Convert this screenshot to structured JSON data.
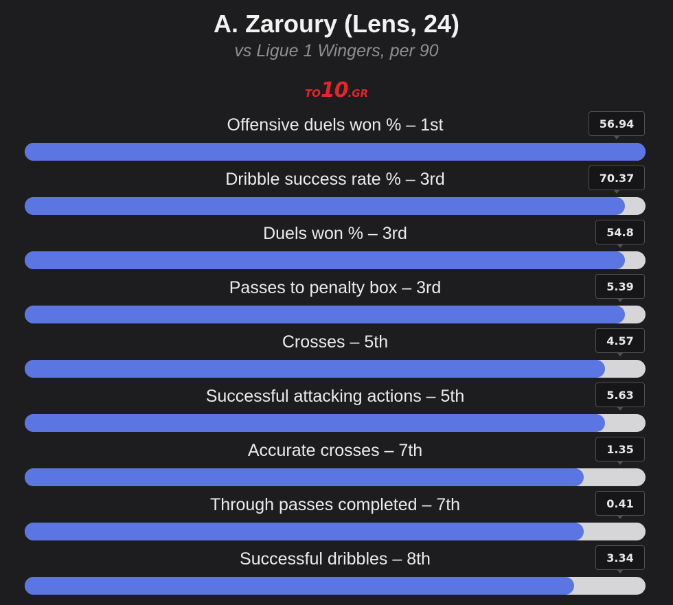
{
  "header": {
    "title": "A. Zaroury (Lens, 24)",
    "subtitle": "vs Ligue 1 Wingers, per 90",
    "logo_prefix": "TO",
    "logo_number": "10",
    "logo_suffix": ".GR"
  },
  "colors": {
    "bar_fill": "#5b76e3",
    "bar_track": "#d6d6d8",
    "background": "#1d1d1f",
    "logo": "#e3262b"
  },
  "chart_data": {
    "type": "bar",
    "orientation": "horizontal",
    "title": "A. Zaroury (Lens, 24)",
    "subtitle": "vs Ligue 1 Wingers, per 90",
    "value_scale": "percentile (0-100)",
    "categories": [
      "Offensive duels won % – 1st",
      "Dribble success rate % – 3rd",
      "Duels won % – 3rd",
      "Passes to penalty box – 3rd",
      "Crosses – 5th",
      "Successful attacking actions – 5th",
      "Accurate crosses – 7th",
      "Through passes completed – 7th",
      "Successful dribbles – 8th"
    ],
    "values": [
      "56.94",
      "70.37",
      "54.8",
      "5.39",
      "4.57",
      "5.63",
      "1.35",
      "0.41",
      "3.34"
    ],
    "percentiles": [
      100,
      96.7,
      96.7,
      96.7,
      93.5,
      93.5,
      90,
      90,
      88.5
    ],
    "ylim": [
      0,
      100
    ]
  }
}
